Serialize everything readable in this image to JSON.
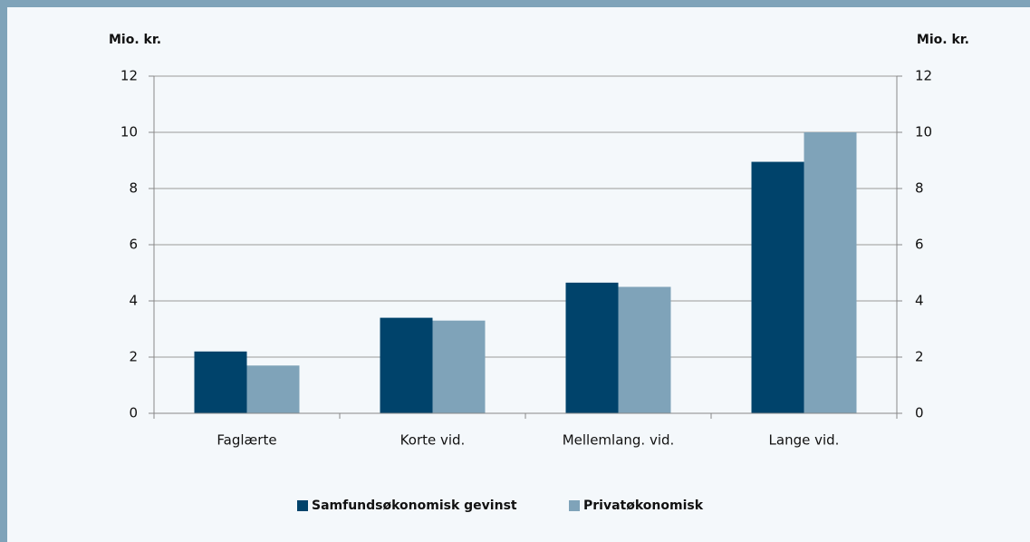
{
  "chart_data": {
    "type": "bar",
    "y_label": "Mio. kr.",
    "y2_label": "Mio. kr.",
    "categories": [
      "Faglærte",
      "Korte vid.",
      "Mellemlang. vid.",
      "Lange vid."
    ],
    "series": [
      {
        "name": "Samfundsøkonomisk gevinst",
        "color": "#00436b",
        "values": [
          2.2,
          3.4,
          4.65,
          8.95
        ]
      },
      {
        "name": "Privatøkonomisk",
        "color": "#7fa3b9",
        "values": [
          1.7,
          3.3,
          4.5,
          10.0
        ]
      }
    ],
    "ylim": [
      0,
      12
    ],
    "yticks": [
      0,
      2,
      4,
      6,
      8,
      10,
      12
    ],
    "y2lim": [
      0,
      12
    ],
    "y2ticks": [
      0,
      2,
      4,
      6,
      8,
      10,
      12
    ],
    "grid": true,
    "legend": "bottom"
  }
}
